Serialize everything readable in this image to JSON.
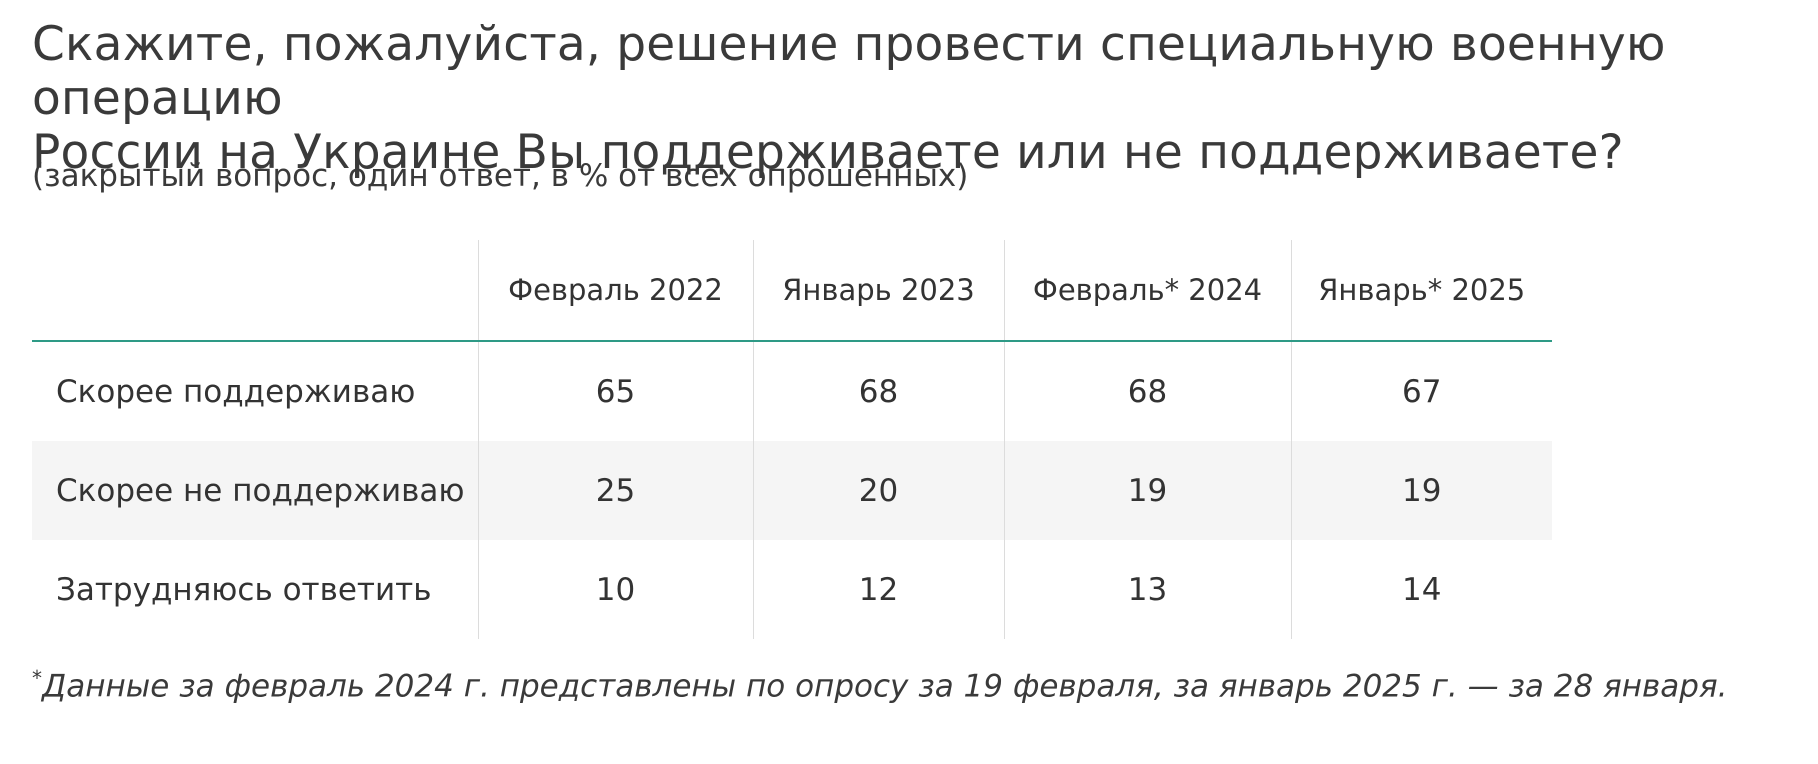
{
  "title_line1": "Скажите, пожалуйста, решение провести специальную военную операцию",
  "title_line2": "России на Украине Вы поддерживаете или не поддерживаете?",
  "subtitle": "(закрытый вопрос, один ответ, в % от всех опрошенных)",
  "chart_data": {
    "type": "table",
    "title": "Скажите, пожалуйста, решение провести специальную военную операцию России на Украине Вы поддерживаете или не поддерживаете?",
    "subtitle": "(закрытый вопрос, один ответ, в % от всех опрошенных)",
    "columns": [
      "Февраль 2022",
      "Январь 2023",
      "Февраль* 2024",
      "Январь* 2025"
    ],
    "rows": [
      {
        "label": "Скорее поддерживаю",
        "values": [
          65,
          68,
          68,
          67
        ]
      },
      {
        "label": "Скорее не поддерживаю",
        "values": [
          25,
          20,
          19,
          19
        ]
      },
      {
        "label": "Затрудняюсь ответить",
        "values": [
          10,
          12,
          13,
          14
        ]
      }
    ],
    "accent_color": "#2e9a86"
  },
  "footnote_star": "*",
  "footnote": "Данные за февраль 2024 г. представлены по опросу за 19 февраля, за январь 2025 г. — за 28 января."
}
